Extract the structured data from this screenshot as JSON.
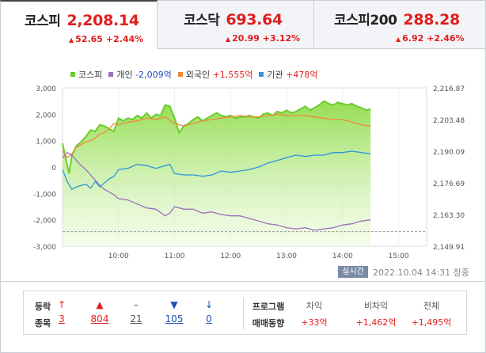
{
  "tabs": [
    {
      "name": "코스피",
      "price": "2,208.14",
      "change": "52.65",
      "pct": "+2.44%",
      "arrow": "▲"
    },
    {
      "name": "코스닥",
      "price": "693.64",
      "change": "20.99",
      "pct": "+3.12%",
      "arrow": "▲"
    },
    {
      "name": "코스피200",
      "price": "288.28",
      "change": "6.92",
      "pct": "+2.46%",
      "arrow": "▲"
    }
  ],
  "legend": {
    "kospi": "코스피",
    "individual_label": "개인",
    "individual_value": "-2,009억",
    "foreign_label": "외국인",
    "foreign_value": "+1,555억",
    "institution_label": "기관",
    "institution_value": "+478억"
  },
  "colors": {
    "kospi": "#6ccc2a",
    "individual": "#9b6fc0",
    "foreign": "#f08a36",
    "institution": "#2e95d8",
    "up": "#e01e1e",
    "down": "#1c4fb0"
  },
  "chart_data": {
    "type": "line",
    "left_axis_ticks": [
      "3,000",
      "2,000",
      "1,000",
      "0",
      "-1,000",
      "-2,000",
      "-3,000"
    ],
    "left_axis_values": [
      3000,
      2000,
      1000,
      0,
      -1000,
      -2000,
      -3000
    ],
    "right_axis_ticks": [
      "2,216.87",
      "2,203.48",
      "2,190.09",
      "2,176.69",
      "2,163.30",
      "2,149.91"
    ],
    "right_axis_values": [
      2216.87,
      2203.48,
      2190.09,
      2176.69,
      2163.3,
      2149.91
    ],
    "x_ticks": [
      "10:00",
      "11:00",
      "12:00",
      "13:00",
      "14:00",
      "15:00"
    ],
    "x_tick_minutes": [
      600,
      660,
      720,
      780,
      840,
      900
    ],
    "x_range_minutes": [
      540,
      930
    ],
    "kospi_area_left_scale": {
      "x": [
        540,
        543,
        547,
        550,
        555,
        560,
        565,
        570,
        575,
        580,
        585,
        590,
        595,
        600,
        605,
        610,
        615,
        620,
        625,
        630,
        635,
        640,
        645,
        650,
        655,
        660,
        665,
        670,
        675,
        680,
        685,
        690,
        695,
        700,
        705,
        710,
        715,
        720,
        725,
        730,
        735,
        740,
        745,
        750,
        755,
        760,
        765,
        770,
        775,
        780,
        785,
        790,
        795,
        800,
        805,
        810,
        815,
        820,
        825,
        830,
        835,
        840,
        845,
        850,
        855,
        860,
        865,
        870
      ],
      "y": [
        900,
        400,
        -250,
        450,
        800,
        950,
        1150,
        1400,
        1350,
        1600,
        1550,
        1450,
        1350,
        1850,
        1750,
        1850,
        1800,
        1950,
        1850,
        2050,
        1850,
        2000,
        1950,
        2350,
        2300,
        1850,
        1300,
        1550,
        1650,
        1800,
        1900,
        1750,
        1850,
        1950,
        2050,
        1950,
        1900,
        1950,
        1850,
        1900,
        1900,
        1950,
        1900,
        1850,
        2000,
        2050,
        1950,
        2100,
        2050,
        2150,
        2050,
        2100,
        2200,
        2300,
        2150,
        2250,
        2350,
        2500,
        2400,
        2350,
        2450,
        2400,
        2350,
        2400,
        2300,
        2250,
        2150,
        2200
      ]
    },
    "series": [
      {
        "name": "외국인",
        "x": [
          540,
          545,
          550,
          555,
          560,
          565,
          570,
          575,
          580,
          585,
          590,
          595,
          600,
          610,
          620,
          630,
          640,
          650,
          660,
          670,
          680,
          690,
          700,
          710,
          720,
          730,
          740,
          750,
          760,
          770,
          780,
          790,
          800,
          810,
          820,
          830,
          840,
          850,
          860,
          870
        ],
        "y": [
          600,
          350,
          500,
          750,
          850,
          950,
          1000,
          1100,
          1250,
          1300,
          1450,
          1650,
          1600,
          1700,
          1750,
          1850,
          1800,
          1900,
          1650,
          1550,
          1650,
          1750,
          1800,
          1850,
          1900,
          1950,
          1900,
          1900,
          1950,
          2000,
          1950,
          1950,
          1950,
          1900,
          1850,
          1800,
          1800,
          1700,
          1600,
          1550
        ]
      },
      {
        "name": "개인",
        "x": [
          540,
          545,
          550,
          555,
          560,
          565,
          570,
          575,
          580,
          585,
          590,
          595,
          600,
          610,
          620,
          630,
          640,
          650,
          655,
          660,
          670,
          680,
          690,
          700,
          710,
          720,
          730,
          740,
          750,
          760,
          770,
          780,
          790,
          800,
          810,
          820,
          830,
          840,
          850,
          860,
          870
        ],
        "y": [
          350,
          550,
          450,
          250,
          50,
          -100,
          -300,
          -500,
          -700,
          -850,
          -950,
          -1050,
          -1200,
          -1250,
          -1400,
          -1550,
          -1600,
          -1850,
          -1750,
          -1500,
          -1600,
          -1600,
          -1750,
          -1700,
          -1800,
          -1850,
          -1850,
          -1950,
          -2050,
          -2150,
          -2200,
          -2300,
          -2350,
          -2300,
          -2400,
          -2350,
          -2300,
          -2200,
          -2150,
          -2050,
          -2000
        ]
      },
      {
        "name": "기관",
        "x": [
          540,
          545,
          550,
          555,
          560,
          565,
          570,
          575,
          580,
          585,
          590,
          595,
          600,
          610,
          620,
          630,
          640,
          650,
          655,
          660,
          670,
          680,
          690,
          700,
          710,
          720,
          730,
          740,
          750,
          760,
          770,
          780,
          790,
          800,
          810,
          820,
          830,
          840,
          850,
          860,
          870
        ],
        "y": [
          -100,
          -550,
          -850,
          -750,
          -700,
          -650,
          -800,
          -550,
          -750,
          -600,
          -450,
          -350,
          -100,
          -50,
          100,
          50,
          -50,
          50,
          100,
          -250,
          -300,
          -300,
          -350,
          -300,
          -150,
          -200,
          -150,
          -100,
          0,
          150,
          250,
          350,
          450,
          400,
          450,
          450,
          550,
          550,
          600,
          550,
          500
        ]
      }
    ],
    "dashed_baseline_left_scale": -2450
  },
  "timestamp": {
    "badge": "실시간",
    "text": "2022.10.04 14:31 장중"
  },
  "updown": {
    "title_line1": "등락",
    "title_line2": "종목",
    "items": [
      {
        "symbol": "↑",
        "count": "3",
        "color": "#e01e1e"
      },
      {
        "symbol": "▲",
        "count": "804",
        "color": "#e01e1e"
      },
      {
        "symbol": "–",
        "count": "21",
        "color": "#555555"
      },
      {
        "symbol": "▼",
        "count": "105",
        "color": "#1c4fb0"
      },
      {
        "symbol": "↓",
        "count": "0",
        "color": "#1c4fb0"
      }
    ]
  },
  "program": {
    "title_line1": "프로그램",
    "title_line2": "매매동향",
    "cols": [
      {
        "label": "차익",
        "value": "+33억"
      },
      {
        "label": "비차익",
        "value": "+1,462억"
      },
      {
        "label": "전체",
        "value": "+1,495억"
      }
    ]
  }
}
